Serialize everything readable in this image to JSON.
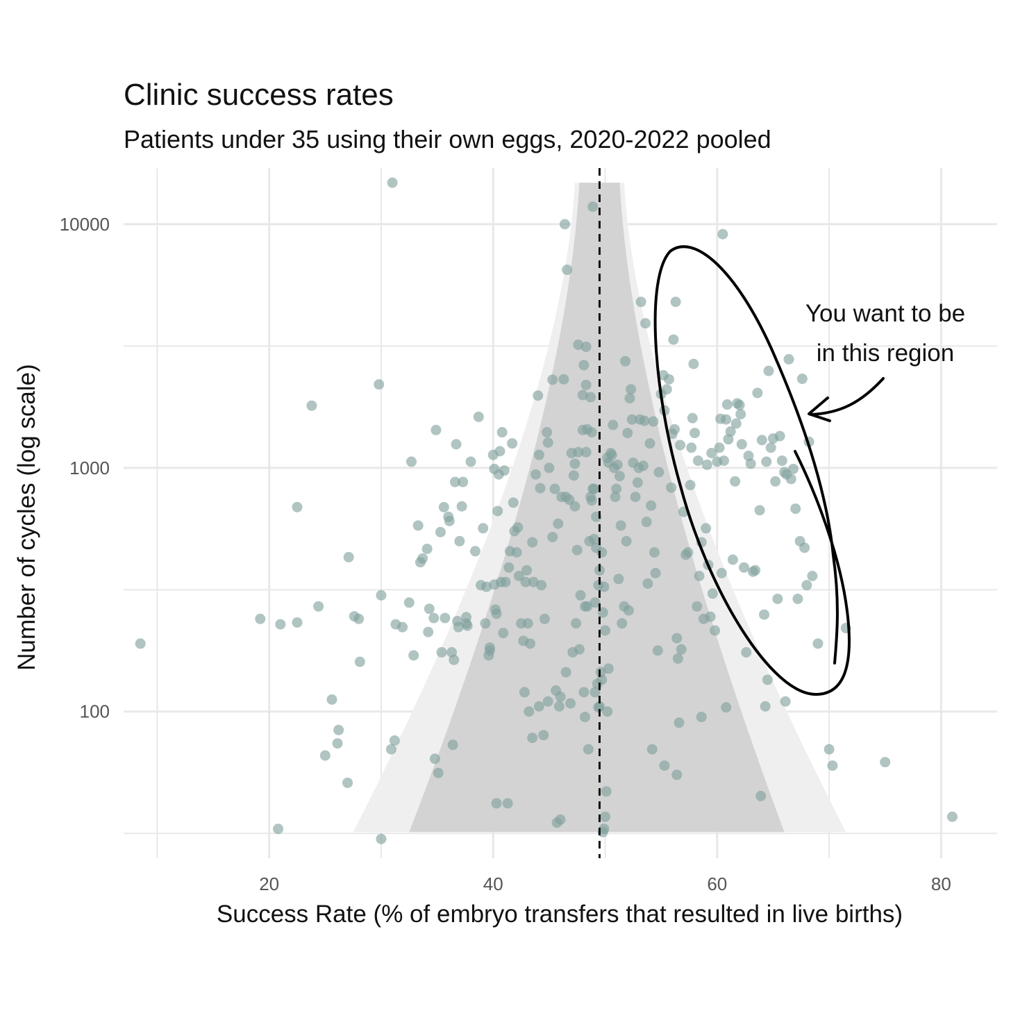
{
  "chart_data": {
    "type": "scatter",
    "title": "Clinic success rates",
    "subtitle": "Patients under 35 using their own eggs, 2020-2022 pooled",
    "xlabel": "Success Rate (% of embryo transfers that resulted in live births)",
    "ylabel": "Number of cycles (log scale)",
    "xlim": [
      7,
      85
    ],
    "ylim": [
      25,
      17000
    ],
    "y_scale": "log",
    "x_ticks": [
      20,
      40,
      60,
      80
    ],
    "y_ticks": [
      100,
      1000,
      10000
    ],
    "grid": true,
    "reference_line": {
      "x": 49.5,
      "style": "dashed"
    },
    "funnel": {
      "center": 49.5,
      "y_top": 14800,
      "y_bottom": 32,
      "outer_bottom": [
        27.5,
        71.5
      ],
      "inner_bottom": [
        32.5,
        66.0
      ],
      "outer_top": [
        47.3,
        51.7
      ],
      "inner_top": [
        47.7,
        51.3
      ]
    },
    "annotation": {
      "text_line1": "You want to be",
      "text_line2": "in this region"
    },
    "colors": {
      "points": "#7fa09c",
      "outer_funnel": "#efefef",
      "inner_funnel": "#d3d3d3",
      "grid": "#e8e8e8",
      "reference_line": "#111111",
      "annotation": "#000000"
    },
    "points": [
      [
        8.5,
        190
      ],
      [
        19.2,
        240
      ],
      [
        20.8,
        33
      ],
      [
        21.0,
        228
      ],
      [
        22.5,
        232
      ],
      [
        22.5,
        690
      ],
      [
        23.8,
        1800
      ],
      [
        24.4,
        270
      ],
      [
        25.0,
        66
      ],
      [
        25.6,
        112
      ],
      [
        26.1,
        74
      ],
      [
        26.2,
        84
      ],
      [
        27.0,
        51
      ],
      [
        27.1,
        430
      ],
      [
        27.6,
        246
      ],
      [
        28.0,
        240
      ],
      [
        28.1,
        160
      ],
      [
        29.8,
        2200
      ],
      [
        30.0,
        30
      ],
      [
        30.0,
        300
      ],
      [
        30.9,
        70
      ],
      [
        31.0,
        14800
      ],
      [
        31.2,
        76
      ],
      [
        31.3,
        228
      ],
      [
        31.9,
        222
      ],
      [
        32.5,
        280
      ],
      [
        32.7,
        1060
      ],
      [
        32.9,
        170
      ],
      [
        33.3,
        580
      ],
      [
        33.5,
        410
      ],
      [
        33.7,
        425
      ],
      [
        34.1,
        465
      ],
      [
        34.2,
        212
      ],
      [
        34.3,
        264
      ],
      [
        34.7,
        242
      ],
      [
        34.8,
        64
      ],
      [
        34.9,
        1430
      ],
      [
        35.1,
        56
      ],
      [
        35.3,
        545
      ],
      [
        35.4,
        175
      ],
      [
        35.6,
        690
      ],
      [
        35.7,
        242
      ],
      [
        36.0,
        630
      ],
      [
        36.1,
        605
      ],
      [
        36.3,
        175
      ],
      [
        36.4,
        73
      ],
      [
        36.5,
        163
      ],
      [
        36.6,
        875
      ],
      [
        36.7,
        1250
      ],
      [
        36.8,
        235
      ],
      [
        36.9,
        222
      ],
      [
        37.0,
        500
      ],
      [
        37.2,
        695
      ],
      [
        37.3,
        875
      ],
      [
        37.6,
        230
      ],
      [
        37.6,
        244
      ],
      [
        37.7,
        225
      ],
      [
        38.0,
        1060
      ],
      [
        38.4,
        455
      ],
      [
        38.7,
        1620
      ],
      [
        38.9,
        330
      ],
      [
        39.1,
        565
      ],
      [
        39.3,
        230
      ],
      [
        39.4,
        325
      ],
      [
        39.6,
        170
      ],
      [
        39.7,
        183
      ],
      [
        39.7,
        178
      ],
      [
        40.0,
        1130
      ],
      [
        40.1,
        990
      ],
      [
        40.1,
        332
      ],
      [
        40.2,
        262
      ],
      [
        40.3,
        252
      ],
      [
        40.3,
        42
      ],
      [
        40.4,
        665
      ],
      [
        40.5,
        940
      ],
      [
        40.6,
        1170
      ],
      [
        40.7,
        340
      ],
      [
        40.8,
        1400
      ],
      [
        40.9,
        210
      ],
      [
        41.0,
        975
      ],
      [
        41.1,
        340
      ],
      [
        41.3,
        42
      ],
      [
        41.4,
        390
      ],
      [
        41.5,
        455
      ],
      [
        41.7,
        1260
      ],
      [
        41.8,
        720
      ],
      [
        41.9,
        550
      ],
      [
        42.1,
        450
      ],
      [
        42.2,
        570
      ],
      [
        42.3,
        360
      ],
      [
        42.5,
        230
      ],
      [
        42.7,
        195
      ],
      [
        42.9,
        340
      ],
      [
        43.0,
        380
      ],
      [
        43.1,
        230
      ],
      [
        43.3,
        190
      ],
      [
        43.5,
        78
      ],
      [
        43.5,
        495
      ],
      [
        43.6,
        340
      ],
      [
        43.8,
        940
      ],
      [
        44.0,
        1980
      ],
      [
        44.1,
        1130
      ],
      [
        44.2,
        825
      ],
      [
        44.3,
        330
      ],
      [
        44.5,
        80
      ],
      [
        44.6,
        240
      ],
      [
        44.8,
        1400
      ],
      [
        44.9,
        1270
      ],
      [
        45.0,
        1000
      ],
      [
        45.3,
        520
      ],
      [
        45.3,
        2300
      ],
      [
        45.5,
        820
      ],
      [
        45.6,
        122
      ],
      [
        45.8,
        590
      ],
      [
        45.9,
        105
      ],
      [
        46.0,
        115
      ],
      [
        46.1,
        760
      ],
      [
        46.3,
        2310
      ],
      [
        46.5,
        760
      ],
      [
        46.8,
        740
      ],
      [
        46.9,
        108
      ],
      [
        47.0,
        1150
      ],
      [
        47.2,
        930
      ],
      [
        47.3,
        695
      ],
      [
        47.3,
        1040
      ],
      [
        47.4,
        230
      ],
      [
        47.5,
        460
      ],
      [
        47.6,
        1160
      ],
      [
        47.7,
        180
      ],
      [
        47.8,
        300
      ],
      [
        48.0,
        1430
      ],
      [
        48.0,
        1990
      ],
      [
        48.1,
        120
      ],
      [
        48.2,
        270
      ],
      [
        48.3,
        2190
      ],
      [
        48.3,
        3140
      ],
      [
        48.4,
        270
      ],
      [
        48.5,
        70
      ],
      [
        48.6,
        500
      ],
      [
        48.7,
        1950
      ],
      [
        48.8,
        1400
      ],
      [
        48.9,
        820
      ],
      [
        49.0,
        510
      ],
      [
        49.1,
        280
      ],
      [
        49.2,
        630
      ],
      [
        49.3,
        130
      ],
      [
        49.4,
        104
      ],
      [
        49.5,
        105
      ],
      [
        49.6,
        145
      ],
      [
        49.7,
        135
      ],
      [
        49.8,
        32
      ],
      [
        49.9,
        33
      ],
      [
        50.0,
        37
      ],
      [
        50.1,
        47
      ],
      [
        50.2,
        100
      ],
      [
        50.3,
        150
      ],
      [
        46.4,
        10000
      ],
      [
        46.6,
        6500
      ],
      [
        47.6,
        3200
      ],
      [
        48.1,
        2640
      ],
      [
        48.9,
        11800
      ],
      [
        48.4,
        1440
      ],
      [
        48.3,
        1160
      ],
      [
        48.8,
        735
      ],
      [
        48.7,
        760
      ],
      [
        49.0,
        820
      ],
      [
        49.2,
        470
      ],
      [
        49.4,
        330
      ],
      [
        49.5,
        380
      ],
      [
        49.7,
        450
      ],
      [
        49.8,
        255
      ],
      [
        49.9,
        325
      ],
      [
        50.0,
        215
      ],
      [
        50.2,
        1100
      ],
      [
        50.3,
        1050
      ],
      [
        50.5,
        1150
      ],
      [
        50.6,
        1130
      ],
      [
        50.7,
        1500
      ],
      [
        50.8,
        1000
      ],
      [
        50.9,
        760
      ],
      [
        51.0,
        820
      ],
      [
        51.1,
        1030
      ],
      [
        51.2,
        350
      ],
      [
        51.3,
        925
      ],
      [
        51.4,
        580
      ],
      [
        51.5,
        230
      ],
      [
        51.7,
        270
      ],
      [
        51.8,
        2740
      ],
      [
        51.9,
        500
      ],
      [
        52.0,
        1390
      ],
      [
        52.1,
        260
      ],
      [
        52.2,
        1930
      ],
      [
        52.3,
        2100
      ],
      [
        52.4,
        1580
      ],
      [
        52.5,
        1050
      ],
      [
        52.7,
        760
      ],
      [
        52.9,
        870
      ],
      [
        53.0,
        1000
      ],
      [
        53.1,
        1580
      ],
      [
        53.2,
        4800
      ],
      [
        53.4,
        1020
      ],
      [
        53.5,
        1560
      ],
      [
        53.6,
        3920
      ],
      [
        53.7,
        600
      ],
      [
        53.8,
        335
      ],
      [
        54.0,
        1260
      ],
      [
        54.1,
        700
      ],
      [
        54.3,
        1550
      ],
      [
        54.4,
        450
      ],
      [
        54.5,
        370
      ],
      [
        54.7,
        178
      ],
      [
        54.8,
        960
      ],
      [
        55.0,
        2010
      ],
      [
        55.2,
        2400
      ],
      [
        55.3,
        1720
      ],
      [
        55.5,
        2100
      ],
      [
        55.7,
        2310
      ],
      [
        55.9,
        830
      ],
      [
        56.0,
        1380
      ],
      [
        56.1,
        3360
      ],
      [
        56.2,
        1440
      ],
      [
        56.3,
        4800
      ],
      [
        56.4,
        200
      ],
      [
        56.5,
        165
      ],
      [
        56.7,
        1240
      ],
      [
        56.8,
        180
      ],
      [
        57.0,
        660
      ],
      [
        57.2,
        440
      ],
      [
        57.4,
        450
      ],
      [
        57.6,
        850
      ],
      [
        57.8,
        1600
      ],
      [
        58.0,
        1390
      ],
      [
        58.2,
        270
      ],
      [
        58.4,
        360
      ],
      [
        58.6,
        495
      ],
      [
        58.8,
        240
      ],
      [
        59.0,
        565
      ],
      [
        59.2,
        400
      ],
      [
        59.4,
        245
      ],
      [
        59.6,
        305
      ],
      [
        59.8,
        215
      ],
      [
        60.0,
        1060
      ],
      [
        60.2,
        1210
      ],
      [
        60.4,
        370
      ],
      [
        60.6,
        1070
      ],
      [
        60.8,
        1580
      ],
      [
        61.0,
        1310
      ],
      [
        61.2,
        1410
      ],
      [
        61.4,
        420
      ],
      [
        61.6,
        880
      ],
      [
        61.8,
        1840
      ],
      [
        62.0,
        1810
      ],
      [
        62.2,
        1250
      ],
      [
        62.4,
        390
      ],
      [
        62.6,
        175
      ],
      [
        62.8,
        1120
      ],
      [
        63.0,
        1040
      ],
      [
        63.2,
        375
      ],
      [
        63.4,
        380
      ],
      [
        63.6,
        2030
      ],
      [
        63.8,
        670
      ],
      [
        64.0,
        1300
      ],
      [
        64.2,
        250
      ],
      [
        64.4,
        1060
      ],
      [
        64.6,
        2500
      ],
      [
        64.8,
        1210
      ],
      [
        65.0,
        1320
      ],
      [
        65.2,
        880
      ],
      [
        65.4,
        290
      ],
      [
        65.6,
        1350
      ],
      [
        65.8,
        1070
      ],
      [
        66.0,
        960
      ],
      [
        66.2,
        940
      ],
      [
        66.4,
        2790
      ],
      [
        66.6,
        900
      ],
      [
        66.8,
        990
      ],
      [
        67.0,
        680
      ],
      [
        67.2,
        290
      ],
      [
        67.4,
        500
      ],
      [
        67.6,
        2320
      ],
      [
        67.8,
        470
      ],
      [
        68.0,
        330
      ],
      [
        68.2,
        1280
      ],
      [
        68.5,
        360
      ],
      [
        69.0,
        190
      ],
      [
        70.0,
        70
      ],
      [
        70.3,
        60
      ],
      [
        71.5,
        220
      ],
      [
        75.0,
        62
      ],
      [
        81.0,
        37
      ],
      [
        60.5,
        9100
      ],
      [
        57.9,
        2670
      ],
      [
        61.7,
        1520
      ],
      [
        60.9,
        1820
      ],
      [
        62.1,
        1660
      ],
      [
        60.3,
        1590
      ],
      [
        59.5,
        1150
      ],
      [
        59.1,
        1030
      ],
      [
        58.3,
        1070
      ],
      [
        57.7,
        1210
      ],
      [
        64.3,
        105
      ],
      [
        64.5,
        135
      ],
      [
        66.1,
        110
      ],
      [
        63.9,
        45
      ],
      [
        56.4,
        55
      ],
      [
        55.3,
        60
      ],
      [
        54.2,
        70
      ],
      [
        56.6,
        90
      ],
      [
        58.6,
        95
      ],
      [
        60.8,
        104
      ],
      [
        45.7,
        35
      ],
      [
        46.0,
        36
      ],
      [
        49.1,
        120
      ],
      [
        48.2,
        95
      ],
      [
        46.5,
        145
      ],
      [
        47.1,
        175
      ],
      [
        44.9,
        110
      ],
      [
        43.2,
        100
      ],
      [
        42.8,
        120
      ],
      [
        44.1,
        105
      ]
    ]
  }
}
